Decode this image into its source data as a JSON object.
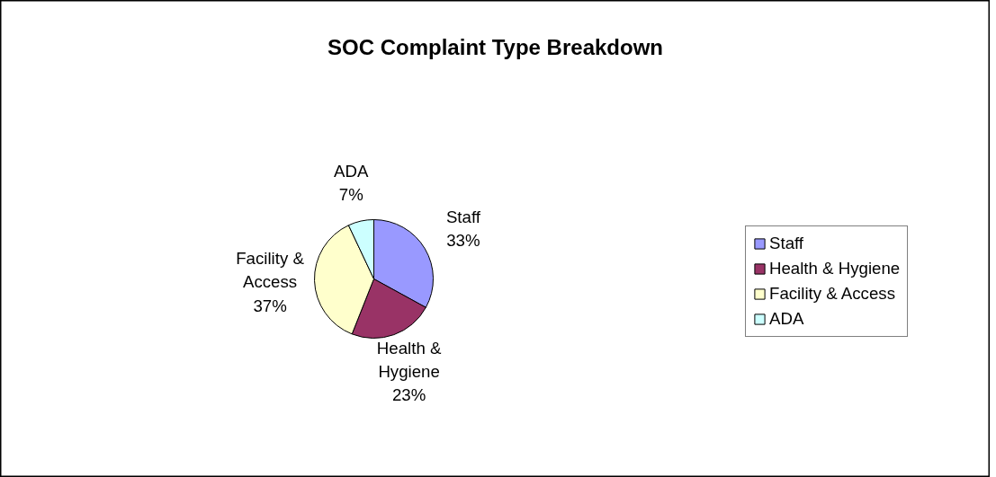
{
  "chart_data": {
    "type": "pie",
    "title": "SOC Complaint Type Breakdown",
    "categories": [
      "Staff",
      "Health & Hygiene",
      "Facility & Access",
      "ADA"
    ],
    "values": [
      33,
      23,
      37,
      7
    ],
    "value_labels": [
      "33%",
      "23%",
      "37%",
      "7%"
    ],
    "colors": [
      "#9999ff",
      "#993366",
      "#ffffcc",
      "#ccffff"
    ],
    "data_labels": true,
    "legend": "right"
  }
}
